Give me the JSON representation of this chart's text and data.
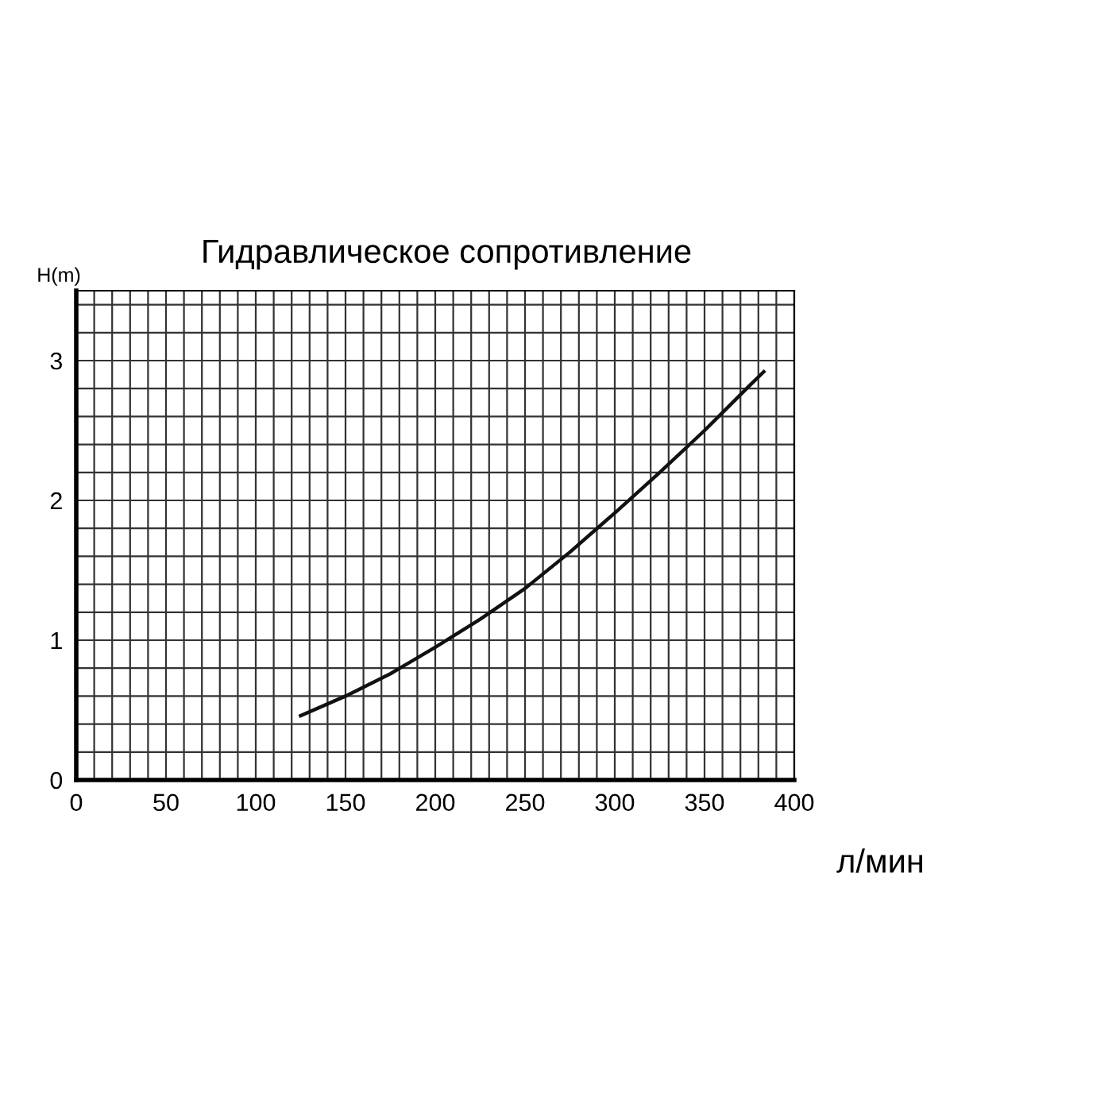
{
  "chart_data": {
    "type": "line",
    "title": "Гидравлическое сопротивление",
    "xlabel": "л/мин",
    "ylabel": "H(m)",
    "x": [
      125,
      150,
      175,
      200,
      225,
      250,
      275,
      300,
      325,
      350,
      375,
      383
    ],
    "series": [
      {
        "color": "#111111",
        "values": [
          0.46,
          0.6,
          0.76,
          0.95,
          1.15,
          1.37,
          1.63,
          1.91,
          2.2,
          2.5,
          2.82,
          2.92
        ]
      }
    ],
    "xlim": [
      0,
      400
    ],
    "ylim": [
      0,
      3.5
    ],
    "xticks": [
      0,
      {
        "value": 10,
        "label": null
      },
      {
        "value": 20,
        "label": null
      },
      {
        "value": 30,
        "label": null
      },
      {
        "value": 40,
        "label": null
      },
      50,
      {
        "value": 60,
        "label": null
      },
      {
        "value": 70,
        "label": null
      },
      {
        "value": 80,
        "label": null
      },
      {
        "value": 90,
        "label": null
      },
      100,
      {
        "value": 110,
        "label": null
      },
      {
        "value": 120,
        "label": null
      },
      {
        "value": 130,
        "label": null
      },
      {
        "value": 140,
        "label": null
      },
      150,
      {
        "value": 160,
        "label": null
      },
      {
        "value": 170,
        "label": null
      },
      {
        "value": 180,
        "label": null
      },
      {
        "value": 190,
        "label": null
      },
      200,
      {
        "value": 210,
        "label": null
      },
      {
        "value": 220,
        "label": null
      },
      {
        "value": 230,
        "label": null
      },
      {
        "value": 240,
        "label": null
      },
      250,
      {
        "value": 260,
        "label": null
      },
      {
        "value": 270,
        "label": null
      },
      {
        "value": 280,
        "label": null
      },
      {
        "value": 290,
        "label": null
      },
      300,
      {
        "value": 310,
        "label": null
      },
      {
        "value": 320,
        "label": null
      },
      {
        "value": 330,
        "label": null
      },
      {
        "value": 340,
        "label": null
      },
      350,
      {
        "value": 360,
        "label": null
      },
      {
        "value": 370,
        "label": null
      },
      {
        "value": 380,
        "label": null
      },
      {
        "value": 390,
        "label": null
      },
      400
    ],
    "yticks": [
      0,
      {
        "value": 0.2,
        "label": null
      },
      {
        "value": 0.4,
        "label": null
      },
      {
        "value": 0.6,
        "label": null
      },
      {
        "value": 0.8,
        "label": null
      },
      1,
      {
        "value": 1.2,
        "label": null
      },
      {
        "value": 1.4,
        "label": null
      },
      {
        "value": 1.6,
        "label": null
      },
      {
        "value": 1.8,
        "label": null
      },
      2,
      {
        "value": 2.2,
        "label": null
      },
      {
        "value": 2.4,
        "label": null
      },
      {
        "value": 2.6,
        "label": null
      },
      {
        "value": 2.8,
        "label": null
      },
      3,
      {
        "value": 3.2,
        "label": null
      },
      {
        "value": 3.4,
        "label": null
      }
    ],
    "grid": true,
    "marker": "none",
    "line_style": "solid"
  }
}
